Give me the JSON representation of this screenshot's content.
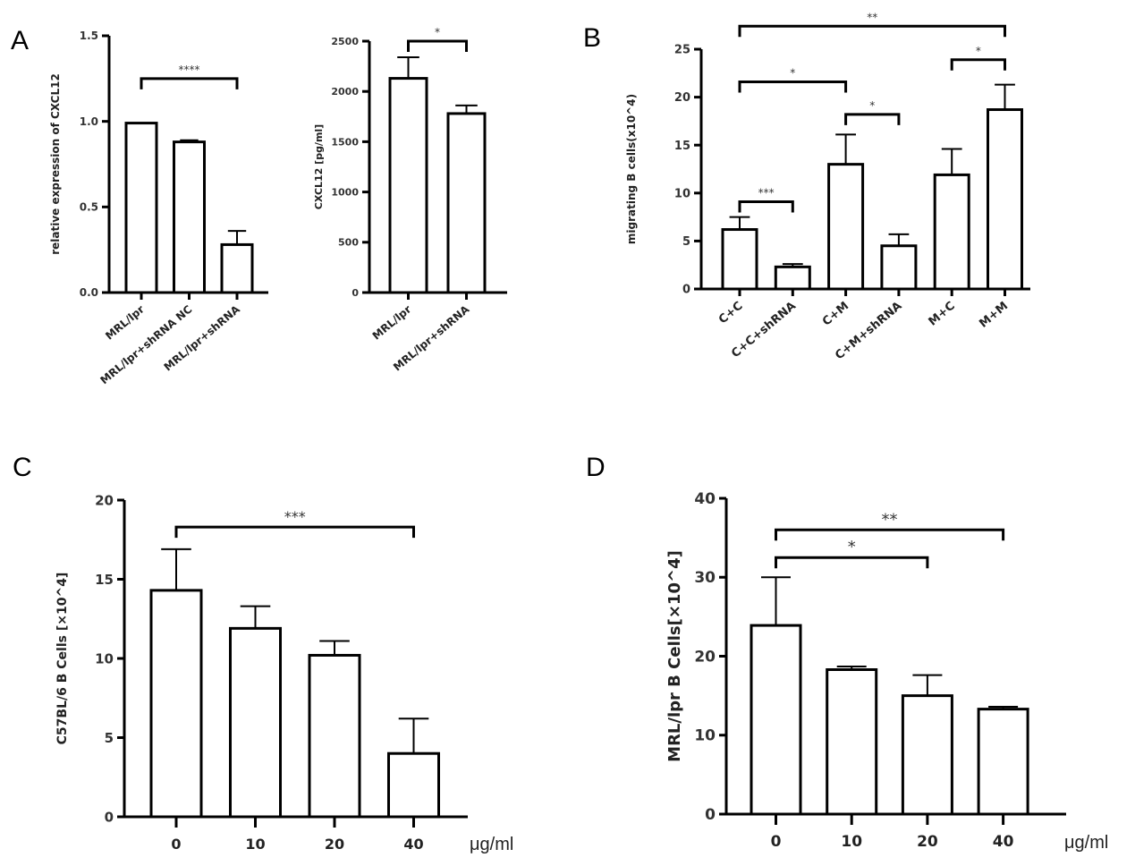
{
  "chart_data": [
    {
      "id": "A1",
      "panel_letter": "A",
      "type": "bar",
      "title": "",
      "xlabel": "",
      "ylabel": "relative expression of CXCL12",
      "ylim": [
        0,
        1.5
      ],
      "yticks": [
        0.0,
        0.5,
        1.0,
        1.5
      ],
      "ytick_labels": [
        "0.0",
        "0.5",
        "1.0",
        "1.5"
      ],
      "categories": [
        "MRL/lpr",
        "MRL/lpr+shRNA NC",
        "MRL/lpr+shRNA"
      ],
      "values": [
        0.99,
        0.88,
        0.28
      ],
      "error_upper": [
        0.99,
        0.89,
        0.36
      ],
      "significance": [
        {
          "from": 0,
          "to": 2,
          "label": "****",
          "level": 1.25
        }
      ],
      "grid": false,
      "legend": "none"
    },
    {
      "id": "A2",
      "panel_letter": "",
      "type": "bar",
      "title": "",
      "xlabel": "",
      "ylabel": "CXCL12 [pg/ml]",
      "ylim": [
        0,
        2500
      ],
      "yticks": [
        0,
        500,
        1000,
        1500,
        2000,
        2500
      ],
      "ytick_labels": [
        "0",
        "500",
        "1000",
        "1500",
        "2000",
        "2500"
      ],
      "categories": [
        "MRL/lpr",
        "MRL/lpr+shRNA"
      ],
      "values": [
        2130,
        1780
      ],
      "error_upper": [
        2340,
        1860
      ],
      "significance": [
        {
          "from": 0,
          "to": 1,
          "label": "*",
          "level": 2500
        }
      ],
      "grid": false,
      "legend": "none"
    },
    {
      "id": "B",
      "panel_letter": "B",
      "type": "bar",
      "title": "",
      "xlabel": "",
      "ylabel": "migrating B cells(x10^4)",
      "ylim": [
        0,
        25
      ],
      "yticks": [
        0,
        5,
        10,
        15,
        20,
        25
      ],
      "ytick_labels": [
        "0",
        "5",
        "10",
        "15",
        "20",
        "25"
      ],
      "categories": [
        "C+C",
        "C+C+shRNA",
        "C+M",
        "C+M+shRNA",
        "M+C",
        "M+M"
      ],
      "values": [
        6.2,
        2.3,
        13.0,
        4.5,
        11.9,
        18.7
      ],
      "error_upper": [
        7.5,
        2.6,
        16.1,
        5.7,
        14.6,
        21.3
      ],
      "significance": [
        {
          "from": 0,
          "to": 1,
          "label": "***",
          "level": 9.1
        },
        {
          "from": 2,
          "to": 3,
          "label": "*",
          "level": 18.2
        },
        {
          "from": 0,
          "to": 2,
          "label": "*",
          "level": 21.6
        },
        {
          "from": 4,
          "to": 5,
          "label": "*",
          "level": 23.9
        },
        {
          "from": 0,
          "to": 5,
          "label": "**",
          "level": 27.4
        }
      ],
      "grid": false,
      "legend": "none"
    },
    {
      "id": "C",
      "panel_letter": "C",
      "type": "bar",
      "title": "",
      "xlabel": "μg/ml",
      "ylabel": "C57BL/6 B Cells [×10^4]",
      "ylim": [
        0,
        20
      ],
      "yticks": [
        0,
        5,
        10,
        15,
        20
      ],
      "ytick_labels": [
        "0",
        "5",
        "10",
        "15",
        "20"
      ],
      "categories": [
        "0",
        "10",
        "20",
        "40"
      ],
      "values": [
        14.3,
        11.9,
        10.2,
        4.0
      ],
      "error_upper": [
        16.9,
        13.3,
        11.1,
        6.2
      ],
      "significance": [
        {
          "from": 0,
          "to": 3,
          "label": "***",
          "level": 18.3
        }
      ],
      "grid": false,
      "legend": "none"
    },
    {
      "id": "D",
      "panel_letter": "D",
      "type": "bar",
      "title": "",
      "xlabel": "μg/ml",
      "ylabel": "MRL/lpr B Cells[×10^4]",
      "ylim": [
        0,
        40
      ],
      "yticks": [
        0,
        10,
        20,
        30,
        40
      ],
      "ytick_labels": [
        "0",
        "10",
        "20",
        "30",
        "40"
      ],
      "categories": [
        "0",
        "10",
        "20",
        "40"
      ],
      "values": [
        23.9,
        18.3,
        15.0,
        13.3
      ],
      "error_upper": [
        30.0,
        18.7,
        17.6,
        13.6
      ],
      "significance": [
        {
          "from": 0,
          "to": 2,
          "label": "*",
          "level": 32.5
        },
        {
          "from": 0,
          "to": 3,
          "label": "**",
          "level": 36.0
        }
      ],
      "grid": false,
      "legend": "none"
    }
  ]
}
